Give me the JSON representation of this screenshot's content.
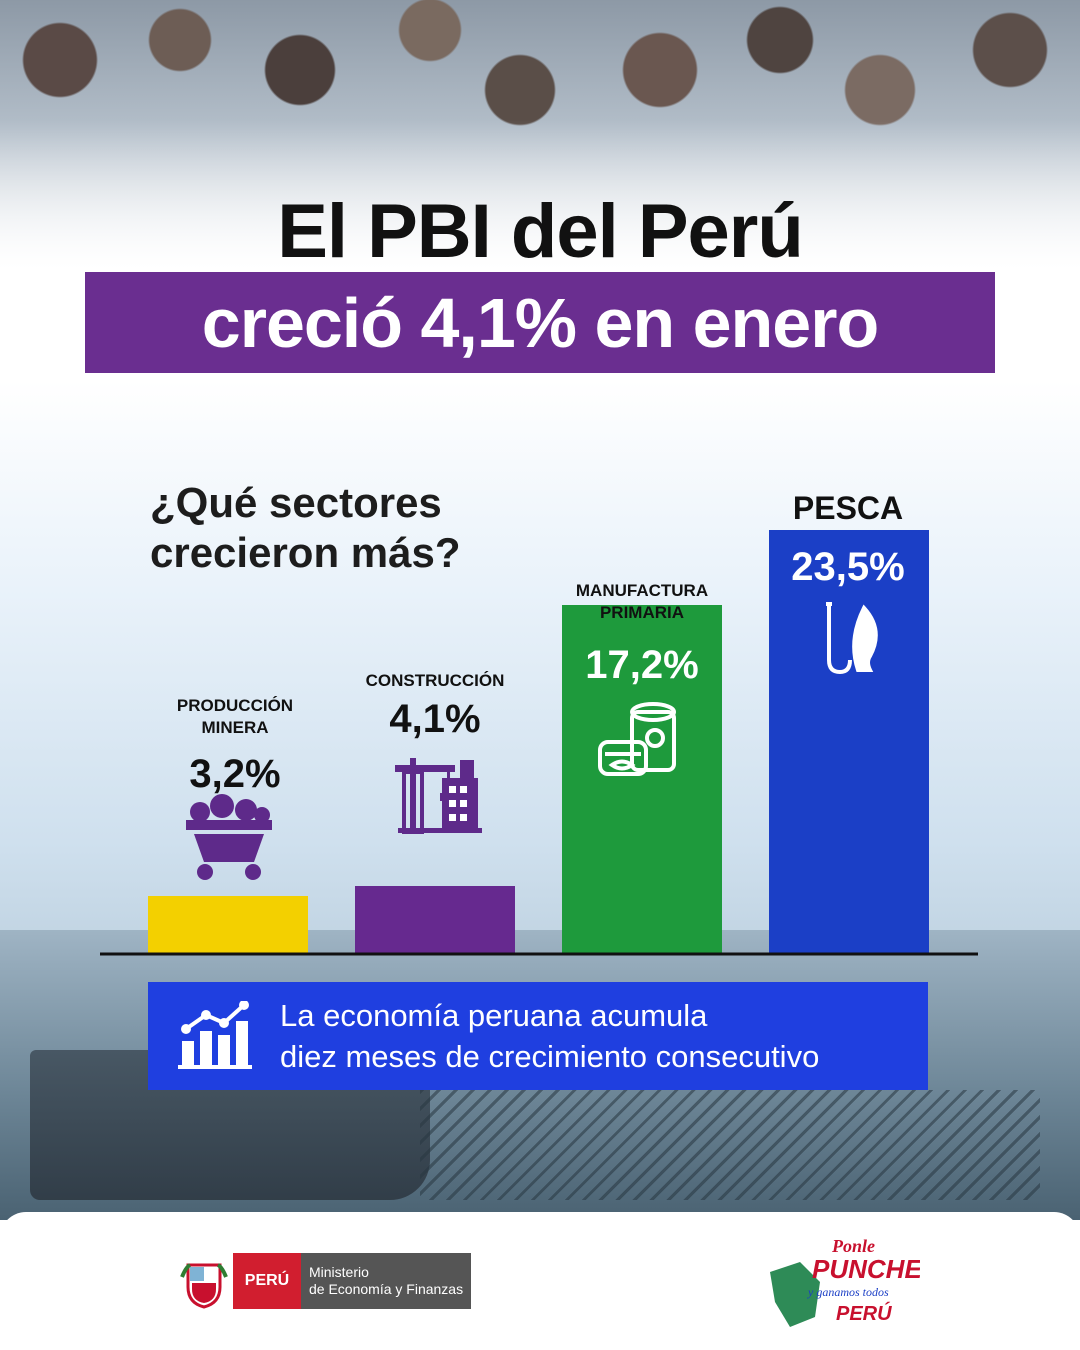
{
  "header": {
    "title": "El PBI del Perú",
    "subtitle": "creció 4,1% en enero"
  },
  "question": {
    "line1": "¿Qué sectores",
    "line2": "crecieron más?"
  },
  "chart_data": {
    "type": "bar",
    "categories": [
      "PRODUCCIÓN MINERA",
      "CONSTRUCCIÓN",
      "MANUFACTURA PRIMARIA",
      "PESCA"
    ],
    "values": [
      3.2,
      4.1,
      17.2,
      23.5
    ],
    "value_labels": [
      "3,2%",
      "4,1%",
      "17,2%",
      "23,5%"
    ],
    "unit": "%",
    "colors": [
      "#f3d000",
      "#66298f",
      "#1e9a3c",
      "#1b3fc6"
    ],
    "icons": [
      "ore-cart-icon",
      "crane-building-icon",
      "canned-fish-icon",
      "fish-hook-icon"
    ],
    "grid": false,
    "legend": "none"
  },
  "labels": {
    "mineria_line1": "PRODUCCIÓN",
    "mineria_line2": "MINERA",
    "construccion": "CONSTRUCCIÓN",
    "manufactura_line1": "MANUFACTURA",
    "manufactura_line2": "PRIMARIA",
    "pesca": "PESCA"
  },
  "note": {
    "line1": "La economía peruana acumula",
    "line2": "diez meses de crecimiento consecutivo",
    "icon": "growth-chart-icon"
  },
  "footer": {
    "country": "PERÚ",
    "ministry_line1": "Ministerio",
    "ministry_line2": "de Economía y Finanzas",
    "campaign_line1": "Ponle",
    "campaign_line2": "PUNCHE",
    "campaign_line3": "y ganamos todos",
    "campaign_line4": "PERÚ"
  },
  "colors": {
    "purple": "#6a2e90",
    "note_blue": "#1f3fe0"
  }
}
